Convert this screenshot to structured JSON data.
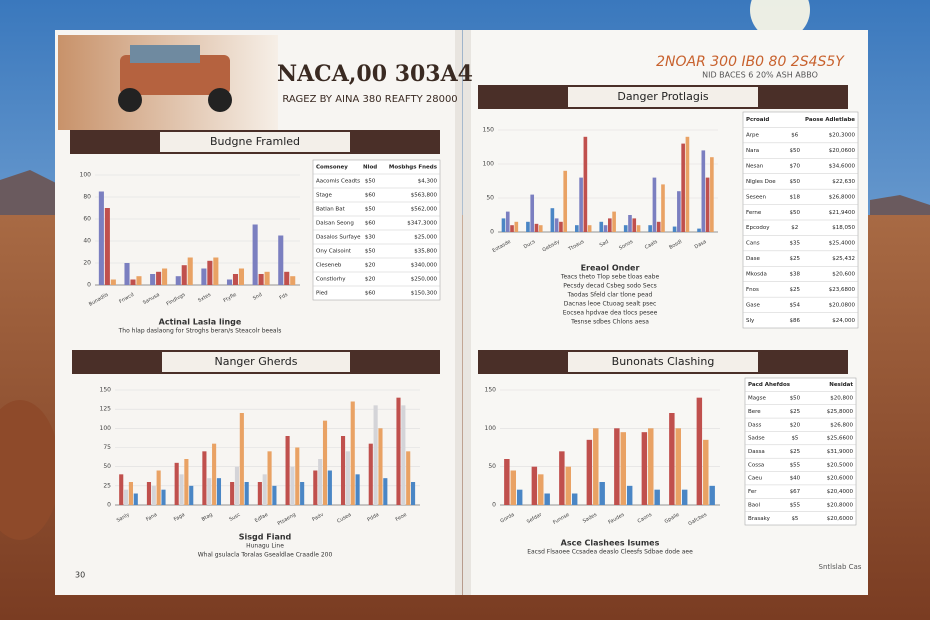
{
  "header": {
    "title": "NACA,00 303A4",
    "subtitle": "RAGEZ BY AINA 380 REAFTY 28000"
  },
  "right_header": {
    "title": "2NOAR 300 IB0 80 2S4S5Y",
    "subtitle": "NID BACES 6 20% ASH ABBO"
  },
  "panels": [
    {
      "title": "Budgne Framled",
      "ylim": [
        0,
        100
      ],
      "yticks": [
        0,
        20,
        40,
        60,
        80,
        100
      ],
      "categories": [
        "Bunadlis",
        "Fnwcd",
        "Sanusa",
        "Flndlvgs",
        "Sxtes",
        "Ftyfle",
        "Snd",
        "Fds"
      ],
      "series": [
        {
          "color": "#7b7fc0",
          "values": [
            85,
            20,
            10,
            8,
            15,
            5,
            55,
            45
          ]
        },
        {
          "color": "#c0504d",
          "values": [
            70,
            5,
            12,
            18,
            22,
            10,
            10,
            12
          ]
        },
        {
          "color": "#e9a264",
          "values": [
            5,
            8,
            15,
            25,
            25,
            15,
            12,
            8
          ]
        }
      ],
      "captions": [
        "Actinal Lasla linge",
        "Tho hlap daslaong for Stroghs beran/s Steacolr beeals"
      ],
      "table": {
        "header": [
          "Comsoney",
          "Nlod",
          "Mosbhgs Fneds"
        ],
        "rows": [
          [
            "Aacomls Ceadts",
            "$50",
            "$4,300"
          ],
          [
            "Stage",
            "$60",
            "$563,800"
          ],
          [
            "Batlan Bat",
            "$50",
            "$562,000"
          ],
          [
            "Dalsan Seong",
            "$60",
            "$347,3000"
          ],
          [
            "Dasalos Surfaye",
            "$30",
            "$25,000"
          ],
          [
            "Ony Calsoint",
            "$50",
            "$35,800"
          ],
          [
            "Cleseneb",
            "$20",
            "$340,000"
          ],
          [
            "Constlorhy",
            "$20",
            "$250,000"
          ],
          [
            "Pied",
            "$60",
            "$150,300"
          ]
        ]
      }
    },
    {
      "title": "Danger Protlagis",
      "ylim": [
        0,
        150
      ],
      "yticks": [
        0,
        50,
        100,
        150
      ],
      "categories": [
        "Eotasde",
        "Ducs",
        "Gebsdy",
        "Ttoaus",
        "Sad",
        "Sonos",
        "Caals",
        "Bosdl",
        "Dasa"
      ],
      "series": [
        {
          "color": "#4a86c5",
          "values": [
            20,
            15,
            35,
            10,
            15,
            10,
            10,
            8,
            5
          ]
        },
        {
          "color": "#7b7fc0",
          "values": [
            30,
            55,
            20,
            80,
            10,
            25,
            80,
            60,
            120
          ]
        },
        {
          "color": "#c0504d",
          "values": [
            10,
            12,
            15,
            140,
            20,
            20,
            15,
            130,
            80
          ]
        },
        {
          "color": "#e9a264",
          "values": [
            15,
            10,
            90,
            10,
            30,
            10,
            70,
            140,
            110
          ]
        }
      ],
      "captions": [
        "Ereaol Onder",
        "Teacs theto Tlop sebe tloas eabe",
        "Pecsdy decad Csbeg sodo Secs",
        "Taodas Sfeld clar tlone pead",
        "Dacnas leoe Ctuoag sealt psec",
        "Eocsea hpdvae dea tlocs pesee",
        "Tesnse sdbes Chlons aesa"
      ],
      "table": {
        "header": [
          "Pcroaid",
          "",
          "Paose Adletlabe"
        ],
        "rows": [
          [
            "Arpe",
            "$6",
            "$20,3000"
          ],
          [
            "Nara",
            "$50",
            "$20,0600"
          ],
          [
            "Nesan",
            "$70",
            "$34,6000"
          ],
          [
            "Nlgles Doe",
            "$50",
            "$22,630"
          ],
          [
            "Seseen",
            "$18",
            "$26,8000"
          ],
          [
            "Ferne",
            "$50",
            "$21,9400"
          ],
          [
            "Epcodoy",
            "$2",
            "$18,050"
          ],
          [
            "Cans",
            "$35",
            "$25,4000"
          ],
          [
            "Dase",
            "$25",
            "$25,432"
          ],
          [
            "Mkosda",
            "$38",
            "$20,600"
          ],
          [
            "Fnos",
            "$25",
            "$23,6800"
          ],
          [
            "Gase",
            "$54",
            "$20,0800"
          ],
          [
            "Sly",
            "$86",
            "$24,000"
          ]
        ]
      }
    },
    {
      "title": "Nanger Gherds",
      "ylim": [
        0,
        150
      ],
      "yticks": [
        0,
        25,
        50,
        75,
        100,
        125,
        150
      ],
      "categories": [
        "Sanly",
        "Fana",
        "Faga",
        "Btag",
        "Susc",
        "Edfae",
        "Ptsaeng",
        "Padv",
        "Cusea",
        "Pdda",
        "Feoe"
      ],
      "series": [
        {
          "color": "#c0504d",
          "values": [
            40,
            30,
            55,
            70,
            30,
            30,
            90,
            45,
            90,
            80,
            140
          ]
        },
        {
          "color": "#d4d4d8",
          "values": [
            20,
            25,
            40,
            35,
            50,
            40,
            50,
            60,
            70,
            130,
            130
          ]
        },
        {
          "color": "#e9a264",
          "values": [
            30,
            45,
            60,
            80,
            120,
            70,
            75,
            110,
            135,
            100,
            70
          ]
        },
        {
          "color": "#4a86c5",
          "values": [
            15,
            20,
            25,
            35,
            30,
            25,
            30,
            45,
            40,
            35,
            30
          ]
        }
      ],
      "captions": [
        "Sisgd Fiand",
        "Hunagu Line",
        "Whal gsulacla Toralas Gsealdlae Craadle 200"
      ],
      "table": null
    },
    {
      "title": "Bunonats Clashing",
      "ylim": [
        0,
        150
      ],
      "yticks": [
        0,
        50,
        100,
        150
      ],
      "categories": [
        "Gorda",
        "Sefdar",
        "Funnse",
        "Sades",
        "Faudes",
        "Caons",
        "Gpaile",
        "Gafcbes"
      ],
      "series": [
        {
          "color": "#c0504d",
          "values": [
            60,
            50,
            70,
            85,
            100,
            95,
            120,
            140
          ]
        },
        {
          "color": "#e9a264",
          "values": [
            45,
            40,
            50,
            100,
            95,
            100,
            100,
            85
          ]
        },
        {
          "color": "#4a86c5",
          "values": [
            20,
            15,
            15,
            30,
            25,
            20,
            20,
            25
          ]
        }
      ],
      "captions": [
        "Asce Clashees Isumes",
        "Eacsd Flsaoee Ccsadea deaslo Cleesfs Sdbae dode aee"
      ],
      "table": {
        "header": [
          "Pacd Ahefdos",
          "",
          "Nesidat"
        ],
        "rows": [
          [
            "Magse",
            "$50",
            "$20,800"
          ],
          [
            "Bere",
            "$25",
            "$25,8000"
          ],
          [
            "Dass",
            "$20",
            "$26,800"
          ],
          [
            "Sadse",
            "$5",
            "$25,6600"
          ],
          [
            "Dassa",
            "$25",
            "$31,9000"
          ],
          [
            "Cossa",
            "$55",
            "$20,5000"
          ],
          [
            "Caeu",
            "$40",
            "$20,6000"
          ],
          [
            "Fer",
            "$67",
            "$20,4000"
          ],
          [
            "Baol",
            "$55",
            "$20,8000"
          ],
          [
            "Brasaky",
            "$5",
            "$20,6000"
          ]
        ]
      }
    }
  ],
  "page_numbers": [
    "30",
    "Sntlslab Cas"
  ]
}
